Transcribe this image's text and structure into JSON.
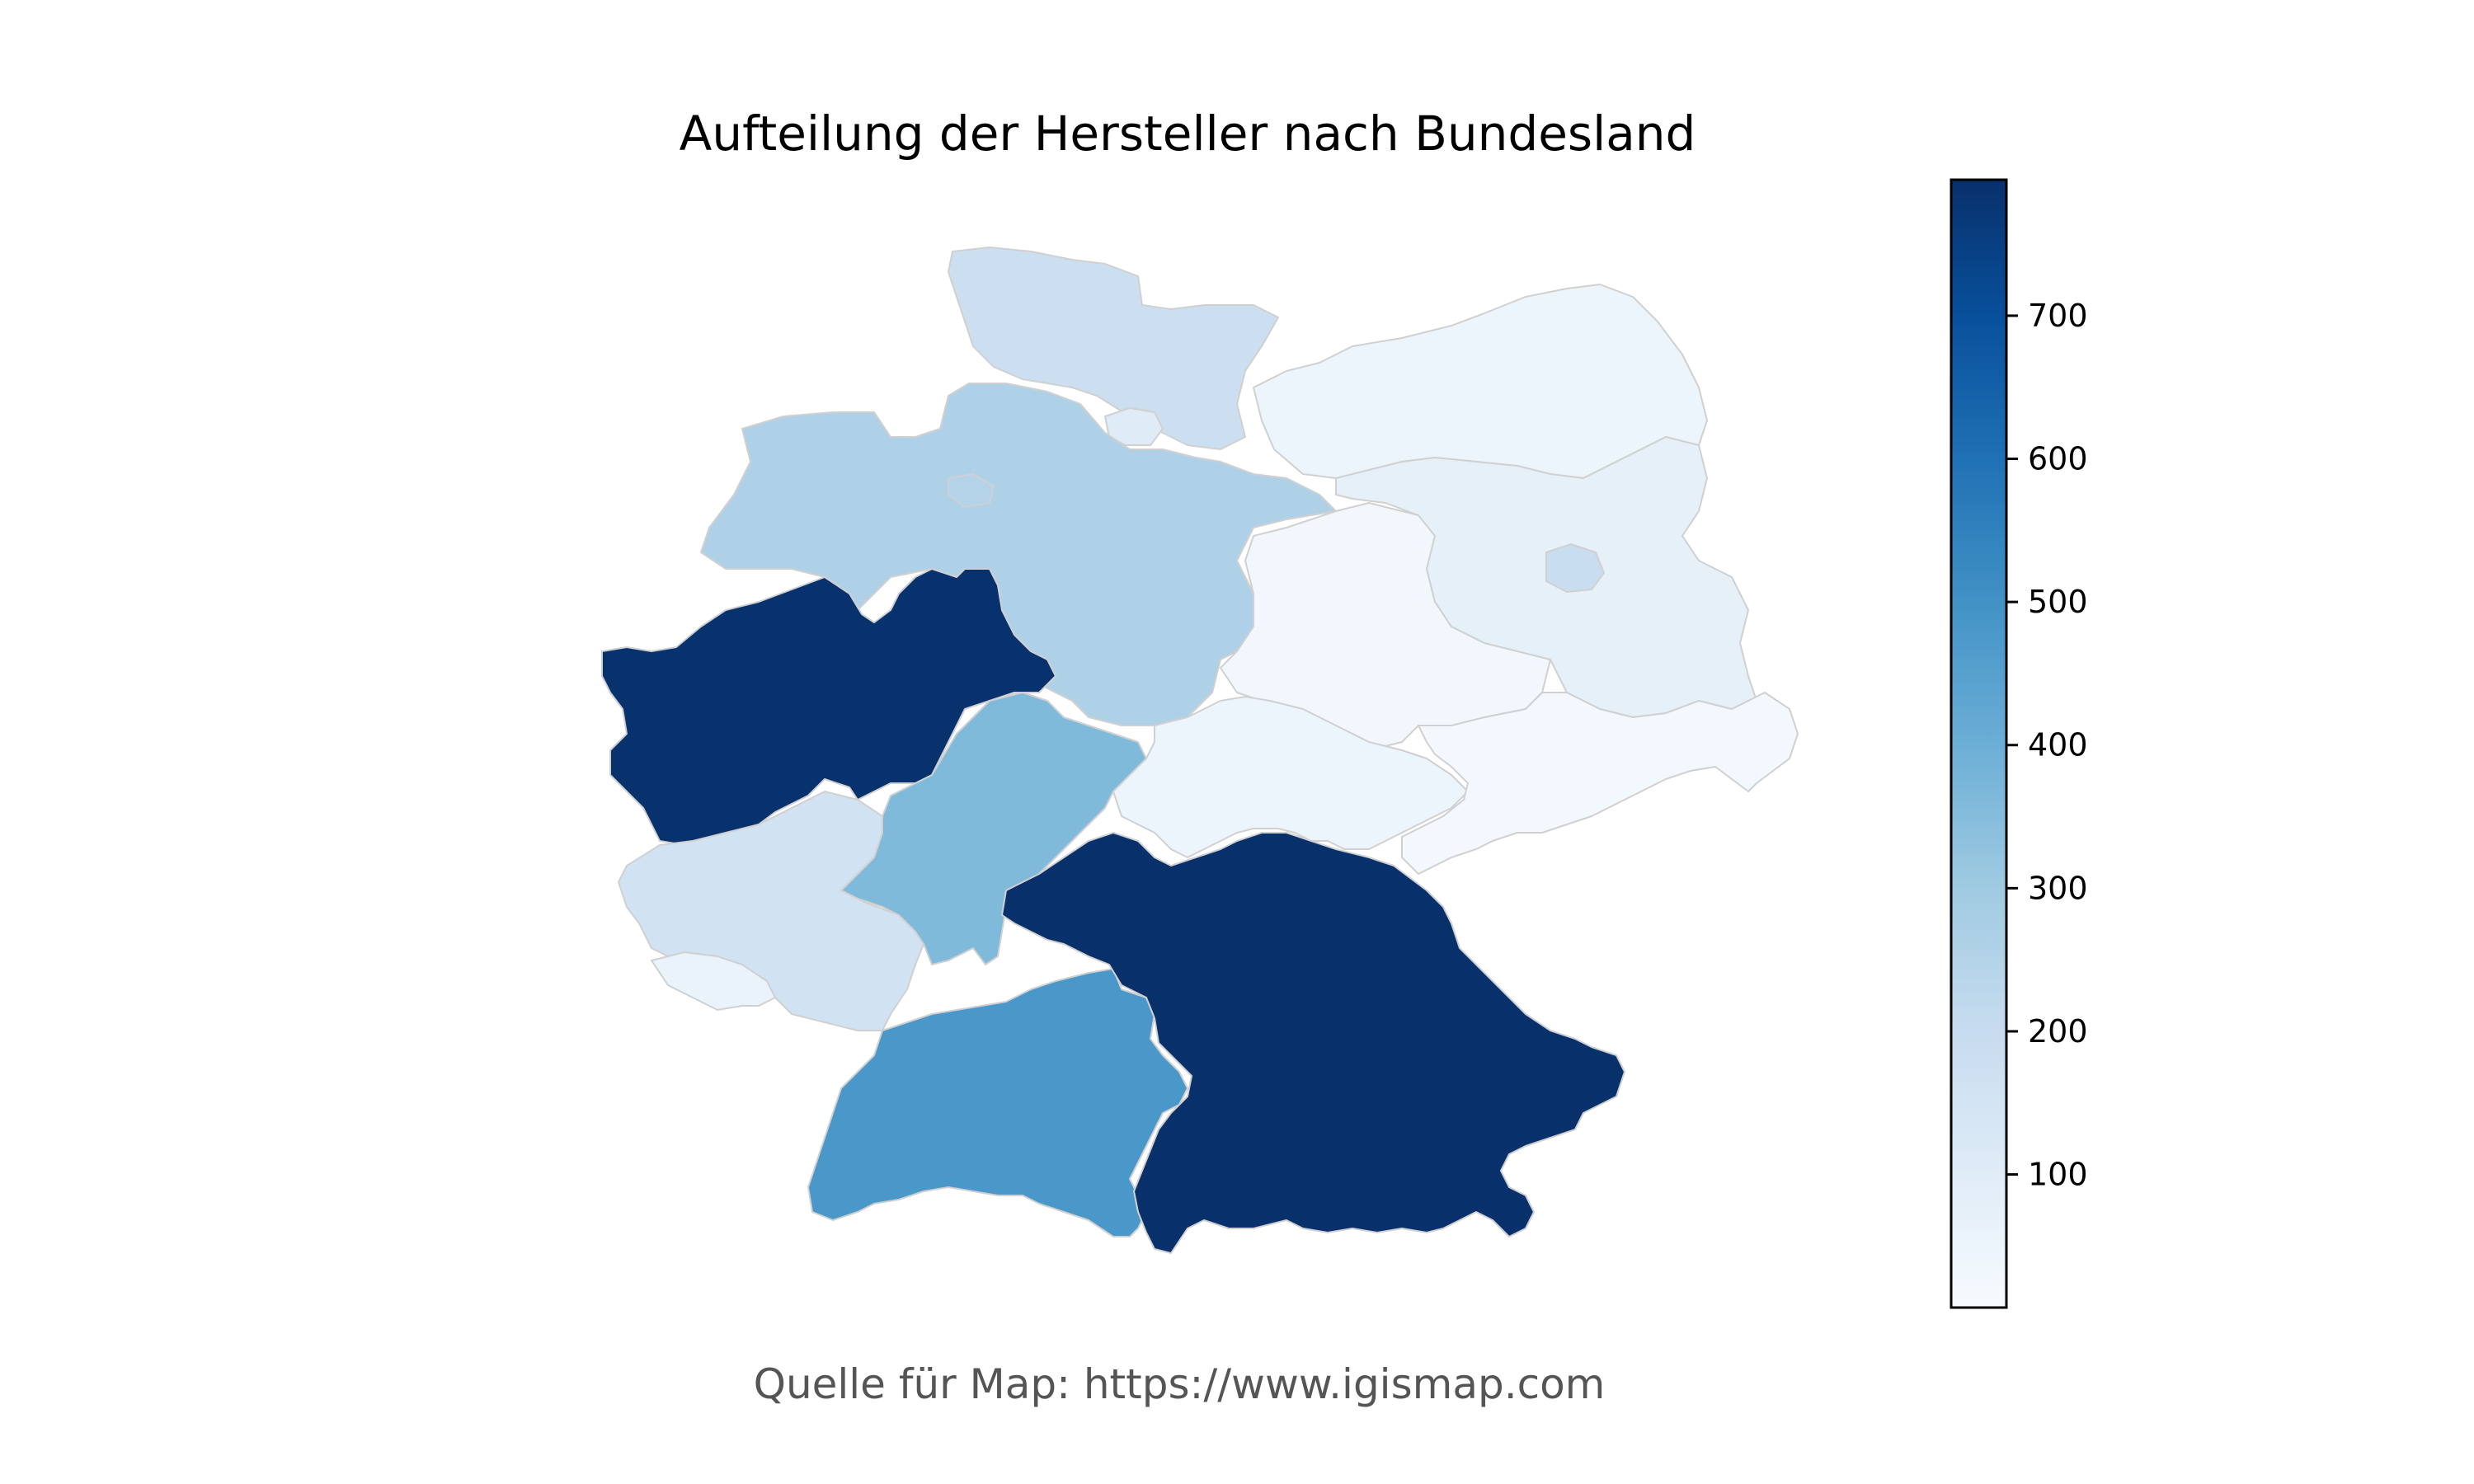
{
  "title": "Aufteilung der Hersteller nach Bundesland",
  "source_note": "Quelle für Map: https://www.igismap.com",
  "colormap": {
    "name": "Blues",
    "min": 7,
    "max": 795,
    "stops": [
      "#f7fbff",
      "#deebf7",
      "#c6dbef",
      "#9ecae1",
      "#6baed6",
      "#4292c6",
      "#2171b5",
      "#08519c",
      "#08306b"
    ]
  },
  "colorbar": {
    "ticks": [
      100,
      200,
      300,
      400,
      500,
      600,
      700
    ]
  },
  "regions": [
    {
      "id": "nordrhein-westfalen",
      "value": 790
    },
    {
      "id": "bayern",
      "value": 795
    },
    {
      "id": "baden-wuerttemberg",
      "value": 480
    },
    {
      "id": "hessen",
      "value": 360
    },
    {
      "id": "niedersachsen",
      "value": 260
    },
    {
      "id": "bremen",
      "value": 250
    },
    {
      "id": "hamburg",
      "value": 100
    },
    {
      "id": "schleswig-holstein",
      "value": 180
    },
    {
      "id": "rheinland-pfalz",
      "value": 160
    },
    {
      "id": "saarland",
      "value": 60
    },
    {
      "id": "berlin",
      "value": 190
    },
    {
      "id": "brandenburg",
      "value": 75
    },
    {
      "id": "mecklenburg-vorpommern",
      "value": 45
    },
    {
      "id": "sachsen-anhalt",
      "value": 30
    },
    {
      "id": "thueringen",
      "value": 50
    },
    {
      "id": "sachsen",
      "value": 25
    }
  ]
}
